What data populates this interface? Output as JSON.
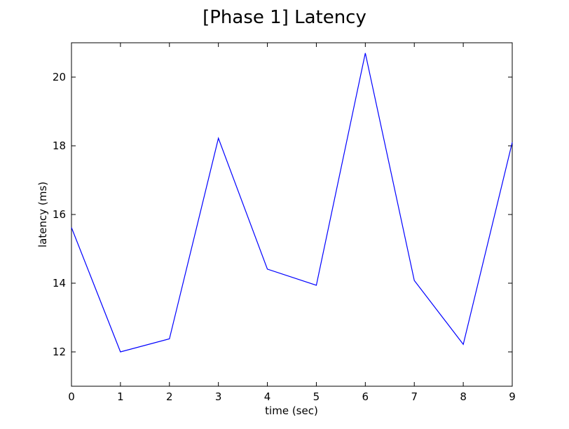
{
  "chart_data": {
    "type": "line",
    "title": "[Phase 1] Latency",
    "xlabel": "time (sec)",
    "ylabel": "latency (ms)",
    "xlim": [
      0,
      9
    ],
    "ylim": [
      11,
      21
    ],
    "x_ticks": [
      0,
      1,
      2,
      3,
      4,
      5,
      6,
      7,
      8,
      9
    ],
    "y_ticks": [
      12,
      14,
      16,
      18,
      20
    ],
    "grid": false,
    "x": [
      0,
      1,
      2,
      3,
      4,
      5,
      6,
      7,
      8,
      9
    ],
    "series": [
      {
        "color": "#0000ff",
        "values": [
          15.62,
          12.0,
          12.38,
          18.22,
          14.41,
          13.94,
          20.7,
          14.08,
          12.22,
          18.1
        ]
      }
    ]
  }
}
